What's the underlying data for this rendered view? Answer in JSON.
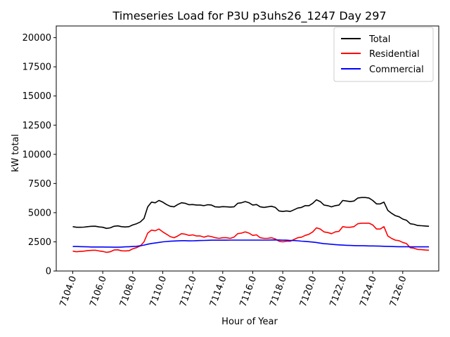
{
  "chart_data": {
    "type": "line",
    "title": "Timeseries Load for P3U p3uhs26_1247  Day 297",
    "xlabel": "Hour of Year",
    "ylabel": "kW total",
    "xlim": [
      7102.9,
      7128.4
    ],
    "ylim": [
      0,
      21000
    ],
    "x_ticks": [
      7104,
      7106,
      7108,
      7110,
      7112,
      7114,
      7116,
      7118,
      7120,
      7122,
      7124,
      7126
    ],
    "x_tick_labels": [
      "7104.0",
      "7106.0",
      "7108.0",
      "7110.0",
      "7112.0",
      "7114.0",
      "7116.0",
      "7118.0",
      "7120.0",
      "7122.0",
      "7124.0",
      "7126.0"
    ],
    "y_ticks": [
      0,
      2500,
      5000,
      7500,
      10000,
      12500,
      15000,
      17500,
      20000
    ],
    "y_tick_labels": [
      "0",
      "2500",
      "5000",
      "7500",
      "10000",
      "12500",
      "15000",
      "17500",
      "20000"
    ],
    "legend_position": "top-right",
    "grid": false,
    "x_start": 7104,
    "x_step": 0.25,
    "series": [
      {
        "name": "Total",
        "color": "#000000",
        "values": [
          3800,
          3750,
          3750,
          3760,
          3800,
          3830,
          3840,
          3780,
          3750,
          3650,
          3700,
          3830,
          3870,
          3800,
          3770,
          3800,
          3950,
          4050,
          4200,
          4500,
          5500,
          5900,
          5850,
          6050,
          5900,
          5700,
          5550,
          5500,
          5700,
          5850,
          5800,
          5680,
          5700,
          5650,
          5650,
          5600,
          5680,
          5650,
          5500,
          5480,
          5520,
          5500,
          5480,
          5500,
          5800,
          5850,
          5950,
          5850,
          5650,
          5700,
          5500,
          5450,
          5500,
          5550,
          5450,
          5150,
          5100,
          5150,
          5100,
          5250,
          5400,
          5450,
          5600,
          5600,
          5800,
          6100,
          5950,
          5650,
          5600,
          5500,
          5600,
          5650,
          6050,
          6000,
          5950,
          6000,
          6250,
          6300,
          6300,
          6250,
          6050,
          5750,
          5750,
          5900,
          5200,
          4950,
          4750,
          4650,
          4450,
          4350,
          4050,
          4000,
          3900,
          3880,
          3860,
          3830
        ]
      },
      {
        "name": "Residential",
        "color": "#ff0000",
        "values": [
          1700,
          1650,
          1680,
          1700,
          1750,
          1770,
          1780,
          1720,
          1680,
          1600,
          1650,
          1800,
          1820,
          1730,
          1720,
          1740,
          1900,
          2000,
          2150,
          2500,
          3250,
          3500,
          3450,
          3600,
          3350,
          3150,
          2950,
          2850,
          3000,
          3200,
          3150,
          3050,
          3100,
          3000,
          3000,
          2900,
          3000,
          2950,
          2850,
          2800,
          2850,
          2850,
          2800,
          2900,
          3200,
          3250,
          3350,
          3250,
          3050,
          3100,
          2850,
          2800,
          2800,
          2850,
          2750,
          2550,
          2500,
          2550,
          2550,
          2700,
          2850,
          2900,
          3050,
          3150,
          3350,
          3700,
          3600,
          3350,
          3300,
          3200,
          3350,
          3400,
          3800,
          3750,
          3750,
          3800,
          4050,
          4100,
          4100,
          4100,
          3950,
          3600,
          3600,
          3800,
          3000,
          2800,
          2650,
          2600,
          2450,
          2350,
          2000,
          1950,
          1850,
          1830,
          1800,
          1780
        ]
      },
      {
        "name": "Commercial",
        "color": "#0000ff",
        "values": [
          2100,
          2100,
          2090,
          2080,
          2070,
          2060,
          2060,
          2060,
          2060,
          2050,
          2050,
          2040,
          2040,
          2050,
          2070,
          2080,
          2100,
          2120,
          2160,
          2220,
          2300,
          2360,
          2400,
          2450,
          2500,
          2530,
          2550,
          2570,
          2580,
          2600,
          2600,
          2580,
          2590,
          2600,
          2610,
          2620,
          2630,
          2640,
          2640,
          2640,
          2640,
          2640,
          2650,
          2650,
          2650,
          2650,
          2650,
          2650,
          2650,
          2650,
          2650,
          2650,
          2650,
          2660,
          2660,
          2660,
          2640,
          2640,
          2620,
          2610,
          2590,
          2560,
          2540,
          2510,
          2480,
          2440,
          2390,
          2340,
          2320,
          2290,
          2260,
          2240,
          2220,
          2200,
          2190,
          2180,
          2170,
          2170,
          2160,
          2150,
          2150,
          2140,
          2130,
          2120,
          2110,
          2100,
          2090,
          2080,
          2080,
          2080,
          2070,
          2070,
          2070,
          2070,
          2070,
          2070
        ]
      }
    ]
  }
}
